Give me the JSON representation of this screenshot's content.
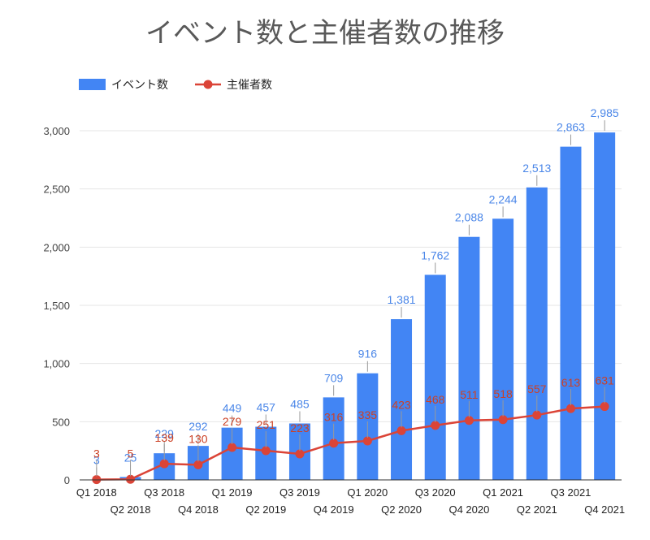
{
  "chart_data": {
    "type": "bar",
    "title": "イベント数と主催者数の推移",
    "categories": [
      "Q1 2018",
      "Q2 2018",
      "Q3 2018",
      "Q4 2018",
      "Q1 2019",
      "Q2 2019",
      "Q3 2019",
      "Q4 2019",
      "Q1 2020",
      "Q2 2020",
      "Q3 2020",
      "Q4 2020",
      "Q1 2021",
      "Q2 2021",
      "Q3 2021",
      "Q4 2021"
    ],
    "series": [
      {
        "name": "イベント数",
        "kind": "bar",
        "color": "#4285f4",
        "label_color": "#4a86e8",
        "values": [
          3,
          25,
          229,
          292,
          449,
          457,
          485,
          709,
          916,
          1381,
          1762,
          2088,
          2244,
          2513,
          2863,
          2985
        ],
        "labels": [
          "3",
          "25",
          "229",
          "292",
          "449",
          "457",
          "485",
          "709",
          "916",
          "1,381",
          "1,762",
          "2,088",
          "2,244",
          "2,513",
          "2,863",
          "2,985"
        ]
      },
      {
        "name": "主催者数",
        "kind": "line",
        "color": "#db4437",
        "label_color": "#cc4125",
        "values": [
          3,
          5,
          139,
          130,
          279,
          251,
          223,
          316,
          335,
          423,
          468,
          511,
          518,
          557,
          613,
          631
        ],
        "labels": [
          "3",
          "5",
          "139",
          "130",
          "279",
          "251",
          "223",
          "316",
          "335",
          "423",
          "468",
          "511",
          "518",
          "557",
          "613",
          "631"
        ]
      }
    ],
    "ylim": [
      0,
      3000
    ],
    "yticks": [
      "0",
      "500",
      "1,000",
      "1,500",
      "2,000",
      "2,500",
      "3,000"
    ],
    "ytick_values": [
      0,
      500,
      1000,
      1500,
      2000,
      2500,
      3000
    ],
    "legend": "top-left",
    "grid": true
  }
}
